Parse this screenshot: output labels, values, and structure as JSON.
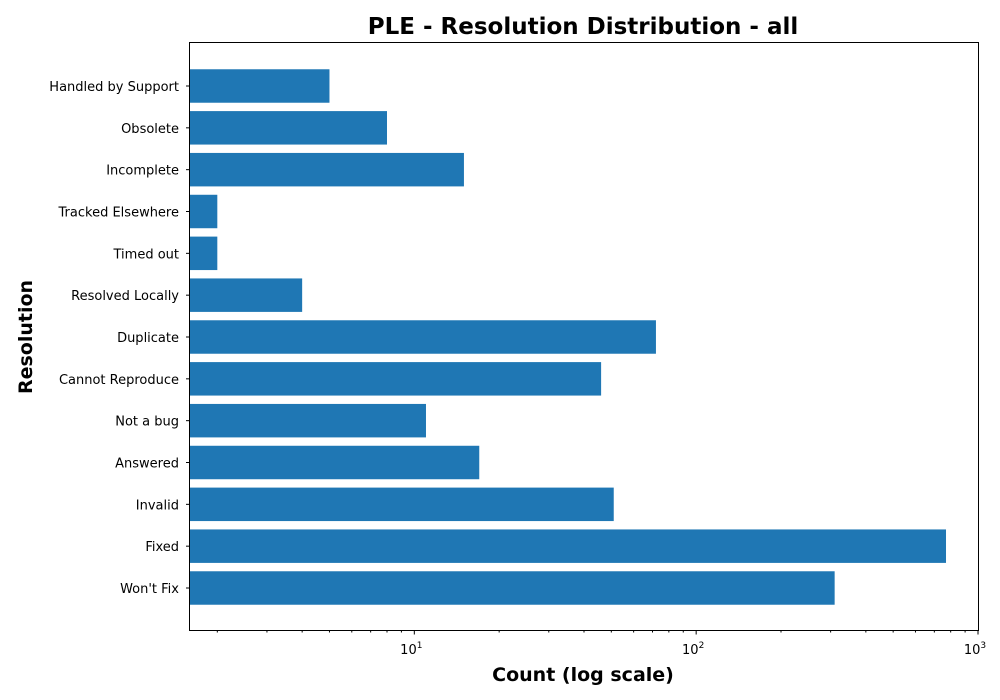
{
  "chart_data": {
    "type": "bar",
    "orientation": "horizontal",
    "title": "PLE - Resolution Distribution - all",
    "xlabel": "Count (log scale)",
    "ylabel": "Resolution",
    "x_scale": "log",
    "xlim": [
      1.6,
      1000
    ],
    "x_ticks": [
      {
        "value": 10,
        "base": "10",
        "exp": "1"
      },
      {
        "value": 100,
        "base": "10",
        "exp": "2"
      },
      {
        "value": 1000,
        "base": "10",
        "exp": "3"
      }
    ],
    "categories": [
      "Handled by Support",
      "Obsolete",
      "Incomplete",
      "Tracked Elsewhere",
      "Timed out",
      "Resolved Locally",
      "Duplicate",
      "Cannot Reproduce",
      "Not a bug",
      "Answered",
      "Invalid",
      "Fixed",
      "Won't Fix"
    ],
    "values": [
      5,
      8,
      15,
      2,
      2,
      4,
      72,
      46,
      11,
      17,
      51,
      770,
      310
    ],
    "bar_color": "#1f77b4",
    "grid": false,
    "legend": "none"
  }
}
